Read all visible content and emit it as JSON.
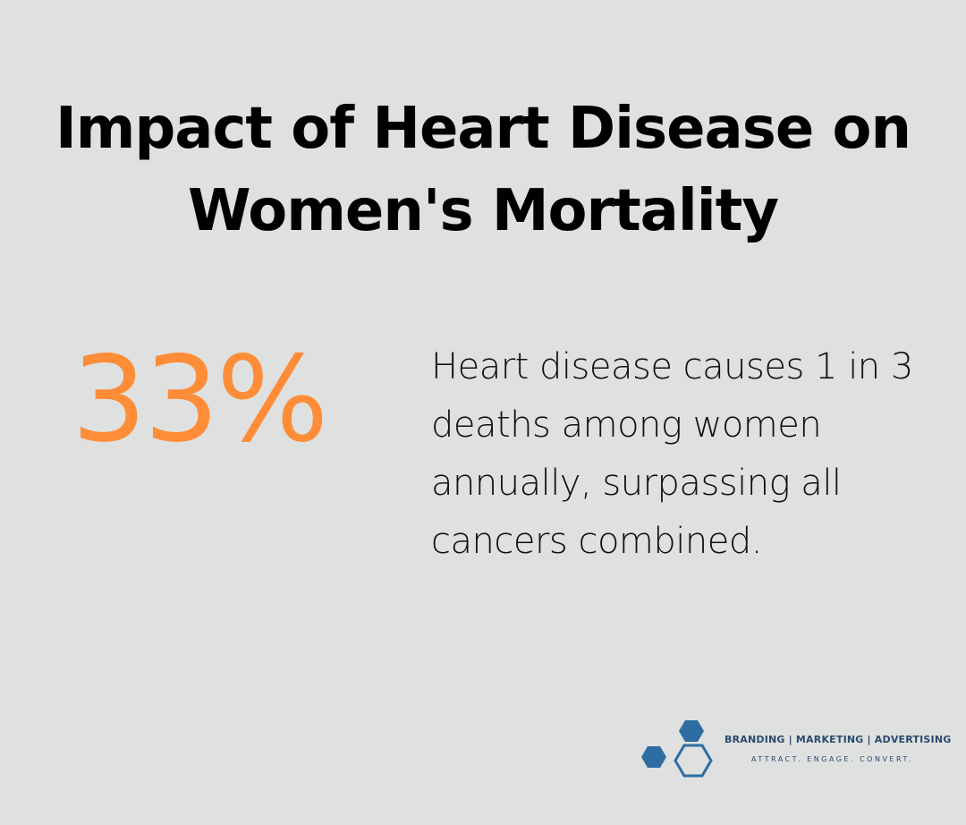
{
  "title": "Impact of Heart Disease on Women's Mortality",
  "stat": {
    "value": "33%",
    "description": "Heart disease causes 1 in 3 deaths among women annually, surpassing all cancers combined."
  },
  "logo": {
    "line1": "BRANDING | MARKETING | ADVERTISING",
    "line2": "ATTRACT. ENGAGE. CONVERT."
  },
  "colors": {
    "background": "#dfe1e0",
    "accent": "#ff8c37",
    "logo_blue": "#2e6da4",
    "logo_text": "#2b4a6e"
  }
}
